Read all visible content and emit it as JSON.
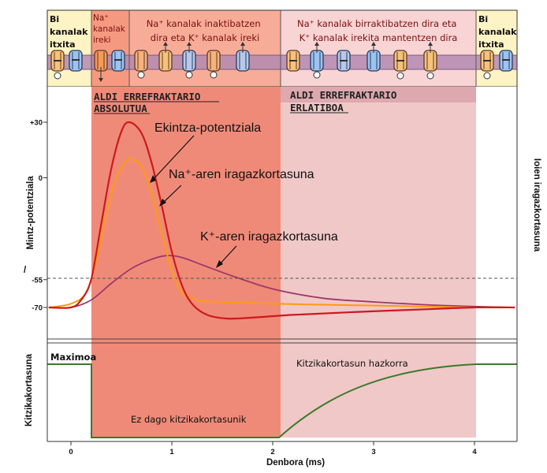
{
  "header": {
    "closed_left": [
      "Bi",
      "kanalak",
      "itxita"
    ],
    "na_open": [
      "Na⁺",
      "kanalak",
      "ireki"
    ],
    "na_inact": [
      "Na⁺ kanalak inaktibatzen",
      "dira eta K⁺ kanalak ireki"
    ],
    "na_reset": [
      "Na⁺ kanalak birraktibatzen dira eta",
      "K⁺ kanalak irekita mantentzen dira"
    ],
    "closed_right": [
      "Bi",
      "kanalak",
      "itxita"
    ]
  },
  "phases": {
    "absolute": [
      "ALDI ERREFRAKTARIO",
      "ABSOLUTUA"
    ],
    "relative": [
      "ALDI ERREFRAKTARIO",
      "ERLATIBOA"
    ]
  },
  "curve_labels": {
    "ap": "Ekintza-potentziala",
    "na": "Na⁺-aren iragazkortasuna",
    "k": "K⁺-aren iragazkortasuna"
  },
  "axes": {
    "left_title": "Mintz-potentziala",
    "right_title": "Ioien iragazkortasuna",
    "bottom_title": "Kitzikakortasuna",
    "x_title": "Denbora (ms)"
  },
  "excitability": {
    "max": "Maximoa",
    "none": "Ez dago kitzikakortasunik",
    "increasing": "Kitzikakortasun hazkorra"
  },
  "colors": {
    "absolute": "#f08a78",
    "relative": "#f0c8c8",
    "ap": "#cc1a1a",
    "na": "#ff9a10",
    "k": "#9c3a6a",
    "excitability": "#3a7a2a"
  },
  "chart_data": {
    "type": "line",
    "title": "",
    "xlabel": "Denbora (ms)",
    "ylabel": "Mintz-potentziala",
    "xlim": [
      -0.22,
      4.4
    ],
    "ylim": [
      -78,
      42
    ],
    "x_ticks": [
      "0",
      "1",
      "2",
      "3",
      "4"
    ],
    "y_ticks": [
      "+30",
      "0",
      "-55",
      "-70"
    ],
    "threshold_mV": -55,
    "phases": [
      {
        "name": "ALDI ERREFRAKTARIO ABSOLUTUA",
        "x": [
          0.2,
          2.05
        ]
      },
      {
        "name": "ALDI ERREFRAKTARIO ERLATIBOA",
        "x": [
          2.05,
          4.0
        ]
      }
    ],
    "series": [
      {
        "name": "Ekintza-potentziala",
        "points": [
          [
            -0.22,
            -70
          ],
          [
            0,
            -70
          ],
          [
            0.1,
            -66
          ],
          [
            0.2,
            -55
          ],
          [
            0.3,
            -25
          ],
          [
            0.4,
            5
          ],
          [
            0.5,
            25
          ],
          [
            0.58,
            30
          ],
          [
            0.7,
            24
          ],
          [
            0.8,
            8
          ],
          [
            0.9,
            -15
          ],
          [
            1.0,
            -40
          ],
          [
            1.1,
            -58
          ],
          [
            1.2,
            -68
          ],
          [
            1.35,
            -74
          ],
          [
            1.55,
            -76
          ],
          [
            1.8,
            -75.5
          ],
          [
            2.2,
            -74
          ],
          [
            2.8,
            -72.5
          ],
          [
            3.5,
            -71
          ],
          [
            4.0,
            -70
          ],
          [
            4.4,
            -70
          ]
        ]
      },
      {
        "name": "Na⁺-aren iragazkortasuna",
        "points": [
          [
            -0.22,
            -70
          ],
          [
            0,
            -68
          ],
          [
            0.15,
            -62
          ],
          [
            0.25,
            -45
          ],
          [
            0.35,
            -20
          ],
          [
            0.45,
            0
          ],
          [
            0.55,
            9
          ],
          [
            0.6,
            10
          ],
          [
            0.7,
            6
          ],
          [
            0.8,
            -8
          ],
          [
            0.9,
            -30
          ],
          [
            1.0,
            -50
          ],
          [
            1.1,
            -62
          ],
          [
            1.25,
            -66
          ],
          [
            1.5,
            -67
          ],
          [
            2.0,
            -68
          ],
          [
            3.0,
            -69
          ],
          [
            4.0,
            -70
          ],
          [
            4.4,
            -70
          ]
        ]
      },
      {
        "name": "K⁺-aren iragazkortasuna",
        "points": [
          [
            -0.22,
            -70
          ],
          [
            0,
            -70
          ],
          [
            0.2,
            -66
          ],
          [
            0.4,
            -57
          ],
          [
            0.6,
            -49
          ],
          [
            0.8,
            -44
          ],
          [
            0.95,
            -42
          ],
          [
            1.1,
            -43
          ],
          [
            1.3,
            -47
          ],
          [
            1.6,
            -53
          ],
          [
            2.0,
            -60
          ],
          [
            2.5,
            -65
          ],
          [
            3.0,
            -67
          ],
          [
            3.5,
            -68.5
          ],
          [
            4.0,
            -69.5
          ],
          [
            4.4,
            -70
          ]
        ]
      }
    ]
  }
}
